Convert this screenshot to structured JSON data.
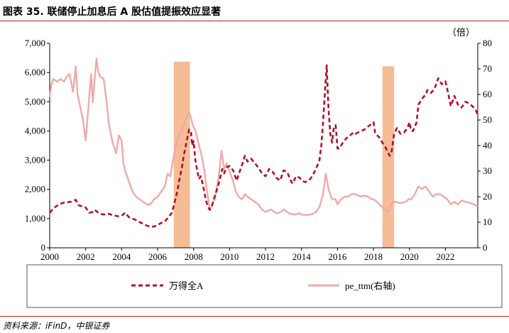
{
  "title": "图表 35. 联储停止加息后 A 股估值提振效应显著",
  "source": "资料来源：iFinD，中银证券",
  "right_axis_unit": "（倍）",
  "colors": {
    "series1": "#b0102a",
    "series2": "#eeaaa8",
    "highlight": "#f5b58b",
    "rule": "#b22222"
  },
  "chart_data": {
    "type": "line",
    "x_ticks": [
      "2000",
      "2002",
      "2004",
      "2006",
      "2008",
      "2010",
      "2012",
      "2014",
      "2016",
      "2018",
      "2020",
      "2022"
    ],
    "y_left_ticks": [
      "0",
      "1,000",
      "2,000",
      "3,000",
      "4,000",
      "5,000",
      "6,000",
      "7,000"
    ],
    "y_right_ticks": [
      "0",
      "10",
      "20",
      "30",
      "40",
      "50",
      "60",
      "70",
      "80"
    ],
    "xlim": [
      2000,
      2023.8
    ],
    "ylim_left": [
      0,
      7000
    ],
    "ylim_right": [
      0,
      80
    ],
    "highlights": [
      {
        "start": 2006.9,
        "end": 2007.8,
        "top": 72.8
      },
      {
        "start": 2018.5,
        "end": 2019.15,
        "top": 71
      }
    ],
    "series": [
      {
        "name": "万得全A",
        "axis": "left",
        "style": "dashed",
        "points": [
          [
            2000.0,
            1200
          ],
          [
            2000.2,
            1350
          ],
          [
            2000.5,
            1480
          ],
          [
            2000.8,
            1550
          ],
          [
            2001.0,
            1560
          ],
          [
            2001.2,
            1580
          ],
          [
            2001.45,
            1640
          ],
          [
            2001.6,
            1460
          ],
          [
            2001.8,
            1420
          ],
          [
            2002.0,
            1380
          ],
          [
            2002.2,
            1200
          ],
          [
            2002.4,
            1230
          ],
          [
            2002.5,
            1300
          ],
          [
            2002.7,
            1200
          ],
          [
            2002.9,
            1150
          ],
          [
            2003.1,
            1140
          ],
          [
            2003.3,
            1160
          ],
          [
            2003.5,
            1120
          ],
          [
            2003.8,
            1080
          ],
          [
            2004.0,
            1100
          ],
          [
            2004.2,
            1200
          ],
          [
            2004.4,
            1050
          ],
          [
            2004.6,
            1000
          ],
          [
            2004.8,
            950
          ],
          [
            2005.0,
            880
          ],
          [
            2005.2,
            820
          ],
          [
            2005.4,
            760
          ],
          [
            2005.6,
            720
          ],
          [
            2005.8,
            730
          ],
          [
            2006.0,
            780
          ],
          [
            2006.2,
            850
          ],
          [
            2006.4,
            900
          ],
          [
            2006.6,
            1050
          ],
          [
            2006.8,
            1200
          ],
          [
            2006.9,
            1450
          ],
          [
            2007.0,
            1700
          ],
          [
            2007.1,
            1950
          ],
          [
            2007.2,
            2300
          ],
          [
            2007.35,
            2750
          ],
          [
            2007.45,
            3150
          ],
          [
            2007.55,
            3450
          ],
          [
            2007.65,
            3750
          ],
          [
            2007.75,
            4050
          ],
          [
            2007.85,
            4000
          ],
          [
            2007.92,
            3500
          ],
          [
            2008.0,
            3650
          ],
          [
            2008.1,
            3000
          ],
          [
            2008.2,
            2650
          ],
          [
            2008.3,
            2350
          ],
          [
            2008.4,
            2450
          ],
          [
            2008.5,
            2200
          ],
          [
            2008.6,
            1900
          ],
          [
            2008.7,
            1600
          ],
          [
            2008.8,
            1400
          ],
          [
            2008.9,
            1300
          ],
          [
            2009.0,
            1400
          ],
          [
            2009.2,
            1800
          ],
          [
            2009.4,
            2200
          ],
          [
            2009.6,
            2700
          ],
          [
            2009.7,
            2550
          ],
          [
            2009.8,
            2750
          ],
          [
            2010.0,
            2800
          ],
          [
            2010.2,
            2650
          ],
          [
            2010.4,
            2300
          ],
          [
            2010.5,
            2500
          ],
          [
            2010.7,
            2850
          ],
          [
            2010.85,
            3150
          ],
          [
            2011.0,
            2950
          ],
          [
            2011.2,
            3050
          ],
          [
            2011.4,
            2900
          ],
          [
            2011.6,
            2750
          ],
          [
            2011.8,
            2550
          ],
          [
            2012.0,
            2450
          ],
          [
            2012.2,
            2700
          ],
          [
            2012.4,
            2600
          ],
          [
            2012.6,
            2400
          ],
          [
            2012.8,
            2300
          ],
          [
            2012.9,
            2450
          ],
          [
            2013.0,
            2650
          ],
          [
            2013.2,
            2600
          ],
          [
            2013.4,
            2300
          ],
          [
            2013.5,
            2200
          ],
          [
            2013.7,
            2450
          ],
          [
            2013.9,
            2400
          ],
          [
            2014.0,
            2300
          ],
          [
            2014.2,
            2250
          ],
          [
            2014.4,
            2300
          ],
          [
            2014.6,
            2450
          ],
          [
            2014.8,
            2700
          ],
          [
            2015.0,
            3000
          ],
          [
            2015.1,
            3500
          ],
          [
            2015.2,
            4300
          ],
          [
            2015.3,
            5300
          ],
          [
            2015.4,
            6250
          ],
          [
            2015.45,
            5500
          ],
          [
            2015.5,
            4800
          ],
          [
            2015.6,
            3900
          ],
          [
            2015.7,
            3600
          ],
          [
            2015.8,
            4100
          ],
          [
            2015.9,
            4200
          ],
          [
            2016.0,
            3400
          ],
          [
            2016.1,
            3400
          ],
          [
            2016.3,
            3600
          ],
          [
            2016.5,
            3750
          ],
          [
            2016.7,
            3850
          ],
          [
            2016.9,
            3950
          ],
          [
            2017.0,
            3900
          ],
          [
            2017.3,
            4000
          ],
          [
            2017.5,
            4050
          ],
          [
            2017.7,
            4150
          ],
          [
            2017.9,
            4250
          ],
          [
            2018.0,
            4300
          ],
          [
            2018.1,
            3900
          ],
          [
            2018.3,
            3800
          ],
          [
            2018.5,
            3600
          ],
          [
            2018.7,
            3400
          ],
          [
            2018.9,
            3150
          ],
          [
            2019.0,
            3250
          ],
          [
            2019.15,
            3900
          ],
          [
            2019.3,
            4100
          ],
          [
            2019.5,
            3900
          ],
          [
            2019.7,
            3950
          ],
          [
            2019.9,
            4100
          ],
          [
            2020.0,
            4300
          ],
          [
            2020.1,
            4000
          ],
          [
            2020.2,
            4000
          ],
          [
            2020.4,
            4300
          ],
          [
            2020.5,
            4900
          ],
          [
            2020.7,
            5100
          ],
          [
            2020.9,
            5250
          ],
          [
            2021.0,
            5400
          ],
          [
            2021.2,
            5300
          ],
          [
            2021.4,
            5450
          ],
          [
            2021.6,
            5800
          ],
          [
            2021.8,
            5600
          ],
          [
            2022.0,
            5700
          ],
          [
            2022.1,
            5450
          ],
          [
            2022.3,
            4850
          ],
          [
            2022.5,
            5200
          ],
          [
            2022.7,
            4900
          ],
          [
            2022.9,
            4800
          ],
          [
            2023.1,
            5000
          ],
          [
            2023.3,
            4950
          ],
          [
            2023.5,
            4850
          ],
          [
            2023.7,
            4700
          ],
          [
            2023.8,
            4550
          ]
        ]
      },
      {
        "name": "pe_ttm(右轴)",
        "axis": "right",
        "style": "solid",
        "points": [
          [
            2000.0,
            59
          ],
          [
            2000.1,
            64
          ],
          [
            2000.2,
            66
          ],
          [
            2000.4,
            65
          ],
          [
            2000.6,
            66
          ],
          [
            2000.8,
            65
          ],
          [
            2000.95,
            67
          ],
          [
            2001.1,
            68
          ],
          [
            2001.3,
            61
          ],
          [
            2001.45,
            71
          ],
          [
            2001.55,
            60
          ],
          [
            2001.7,
            55
          ],
          [
            2001.85,
            50
          ],
          [
            2002.0,
            42
          ],
          [
            2002.15,
            55
          ],
          [
            2002.3,
            68
          ],
          [
            2002.4,
            57
          ],
          [
            2002.5,
            66
          ],
          [
            2002.6,
            74
          ],
          [
            2002.7,
            69
          ],
          [
            2002.8,
            67
          ],
          [
            2003.0,
            66
          ],
          [
            2003.1,
            61
          ],
          [
            2003.3,
            48
          ],
          [
            2003.5,
            41
          ],
          [
            2003.7,
            37
          ],
          [
            2003.85,
            44
          ],
          [
            2004.0,
            42
          ],
          [
            2004.1,
            33
          ],
          [
            2004.2,
            30
          ],
          [
            2004.4,
            26
          ],
          [
            2004.6,
            22
          ],
          [
            2004.8,
            20
          ],
          [
            2005.0,
            19
          ],
          [
            2005.2,
            18
          ],
          [
            2005.4,
            17
          ],
          [
            2005.6,
            17
          ],
          [
            2005.8,
            19
          ],
          [
            2006.0,
            20
          ],
          [
            2006.2,
            22
          ],
          [
            2006.4,
            24
          ],
          [
            2006.55,
            29
          ],
          [
            2006.7,
            28
          ],
          [
            2006.85,
            34
          ],
          [
            2007.0,
            40
          ],
          [
            2007.2,
            44
          ],
          [
            2007.4,
            47
          ],
          [
            2007.6,
            51
          ],
          [
            2007.75,
            53
          ],
          [
            2007.85,
            51
          ],
          [
            2007.95,
            48
          ],
          [
            2008.1,
            46
          ],
          [
            2008.3,
            40
          ],
          [
            2008.45,
            36
          ],
          [
            2008.6,
            30
          ],
          [
            2008.75,
            22
          ],
          [
            2008.9,
            15
          ],
          [
            2009.0,
            16
          ],
          [
            2009.2,
            20
          ],
          [
            2009.4,
            28
          ],
          [
            2009.55,
            38
          ],
          [
            2009.7,
            31
          ],
          [
            2009.85,
            33
          ],
          [
            2010.0,
            30
          ],
          [
            2010.2,
            26
          ],
          [
            2010.35,
            22
          ],
          [
            2010.5,
            20
          ],
          [
            2010.7,
            19
          ],
          [
            2010.85,
            21
          ],
          [
            2011.0,
            20
          ],
          [
            2011.2,
            19
          ],
          [
            2011.4,
            18
          ],
          [
            2011.6,
            17
          ],
          [
            2011.8,
            15
          ],
          [
            2012.0,
            14
          ],
          [
            2012.3,
            15
          ],
          [
            2012.6,
            13.5
          ],
          [
            2012.85,
            14
          ],
          [
            2013.0,
            15
          ],
          [
            2013.3,
            13.5
          ],
          [
            2013.6,
            13
          ],
          [
            2013.9,
            13.5
          ],
          [
            2014.0,
            13
          ],
          [
            2014.3,
            12.8
          ],
          [
            2014.6,
            13.2
          ],
          [
            2014.8,
            14
          ],
          [
            2015.0,
            16
          ],
          [
            2015.2,
            21
          ],
          [
            2015.35,
            29
          ],
          [
            2015.5,
            23
          ],
          [
            2015.7,
            19
          ],
          [
            2015.9,
            19
          ],
          [
            2016.0,
            17
          ],
          [
            2016.2,
            19
          ],
          [
            2016.4,
            20
          ],
          [
            2016.6,
            20
          ],
          [
            2016.8,
            21
          ],
          [
            2017.0,
            21
          ],
          [
            2017.3,
            20
          ],
          [
            2017.5,
            20.5
          ],
          [
            2017.7,
            20
          ],
          [
            2017.9,
            19
          ],
          [
            2018.0,
            19
          ],
          [
            2018.2,
            18
          ],
          [
            2018.4,
            16.5
          ],
          [
            2018.6,
            15
          ],
          [
            2018.8,
            14
          ],
          [
            2019.0,
            17.5
          ],
          [
            2019.2,
            18
          ],
          [
            2019.5,
            17.5
          ],
          [
            2019.8,
            18
          ],
          [
            2019.95,
            19
          ],
          [
            2020.1,
            19
          ],
          [
            2020.3,
            21
          ],
          [
            2020.5,
            24
          ],
          [
            2020.7,
            23
          ],
          [
            2020.9,
            24
          ],
          [
            2021.1,
            22
          ],
          [
            2021.3,
            20
          ],
          [
            2021.5,
            21
          ],
          [
            2021.7,
            21
          ],
          [
            2021.9,
            20
          ],
          [
            2022.1,
            19
          ],
          [
            2022.3,
            17
          ],
          [
            2022.5,
            18
          ],
          [
            2022.7,
            17
          ],
          [
            2022.9,
            18.5
          ],
          [
            2023.1,
            18
          ],
          [
            2023.4,
            17.5
          ],
          [
            2023.6,
            17
          ],
          [
            2023.8,
            16
          ]
        ]
      }
    ]
  }
}
